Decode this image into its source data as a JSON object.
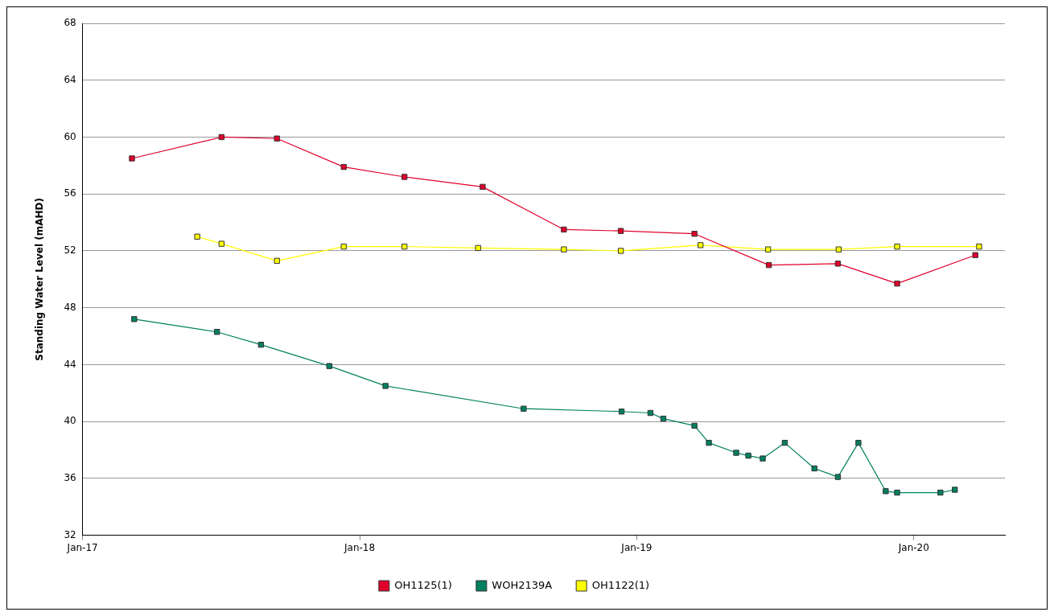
{
  "chart_data": {
    "type": "line",
    "ylabel": "Standing Water Level (mAHD)",
    "xlim": [
      "2017-01-01",
      "2020-04-30"
    ],
    "xticks": [
      {
        "value": "2017-01-01",
        "label": "Jan-17"
      },
      {
        "value": "2018-01-01",
        "label": "Jan-18"
      },
      {
        "value": "2019-01-01",
        "label": "Jan-19"
      },
      {
        "value": "2020-01-01",
        "label": "Jan-20"
      }
    ],
    "ylim": [
      32,
      68
    ],
    "yticks": [
      32,
      36,
      40,
      44,
      48,
      52,
      56,
      60,
      64,
      68
    ],
    "grid": "y",
    "legend": "bottom",
    "marker": "square",
    "line_style": "solid",
    "series": [
      {
        "name": "OH1125(1)",
        "color": "#e0002a",
        "x": [
          "2017-03-07",
          "2017-07-03",
          "2017-09-14",
          "2017-12-11",
          "2018-03-01",
          "2018-06-12",
          "2018-09-27",
          "2018-12-11",
          "2019-03-18",
          "2019-06-24",
          "2019-09-23",
          "2019-12-10",
          "2020-03-22"
        ],
        "values": [
          58.5,
          60.0,
          59.9,
          57.9,
          57.2,
          56.5,
          53.5,
          53.4,
          53.2,
          51.0,
          51.1,
          49.7,
          51.7
        ]
      },
      {
        "name": "WOH2139A",
        "color": "#008060",
        "x": [
          "2017-03-10",
          "2017-06-27",
          "2017-08-24",
          "2017-11-22",
          "2018-02-04",
          "2018-08-05",
          "2018-12-12",
          "2019-01-19",
          "2019-02-05",
          "2019-03-18",
          "2019-04-06",
          "2019-05-12",
          "2019-05-28",
          "2019-06-16",
          "2019-07-15",
          "2019-08-23",
          "2019-09-23",
          "2019-10-20",
          "2019-11-25",
          "2019-12-10",
          "2020-02-05",
          "2020-02-24"
        ],
        "values": [
          47.2,
          46.3,
          45.4,
          43.9,
          42.5,
          40.9,
          40.7,
          40.6,
          40.2,
          39.7,
          38.5,
          37.8,
          37.6,
          37.4,
          38.5,
          36.7,
          36.1,
          38.5,
          35.1,
          35.0,
          35.0,
          35.2
        ]
      },
      {
        "name": "OH1122(1)",
        "color": "#ffff00",
        "x": [
          "2017-06-01",
          "2017-07-03",
          "2017-09-14",
          "2017-12-11",
          "2018-03-01",
          "2018-06-06",
          "2018-09-27",
          "2018-12-11",
          "2019-03-26",
          "2019-06-23",
          "2019-09-24",
          "2019-12-10",
          "2020-03-27"
        ],
        "values": [
          53.0,
          52.5,
          51.3,
          52.3,
          52.3,
          52.2,
          52.1,
          52.0,
          52.4,
          52.1,
          52.1,
          52.3,
          52.3
        ]
      }
    ]
  }
}
